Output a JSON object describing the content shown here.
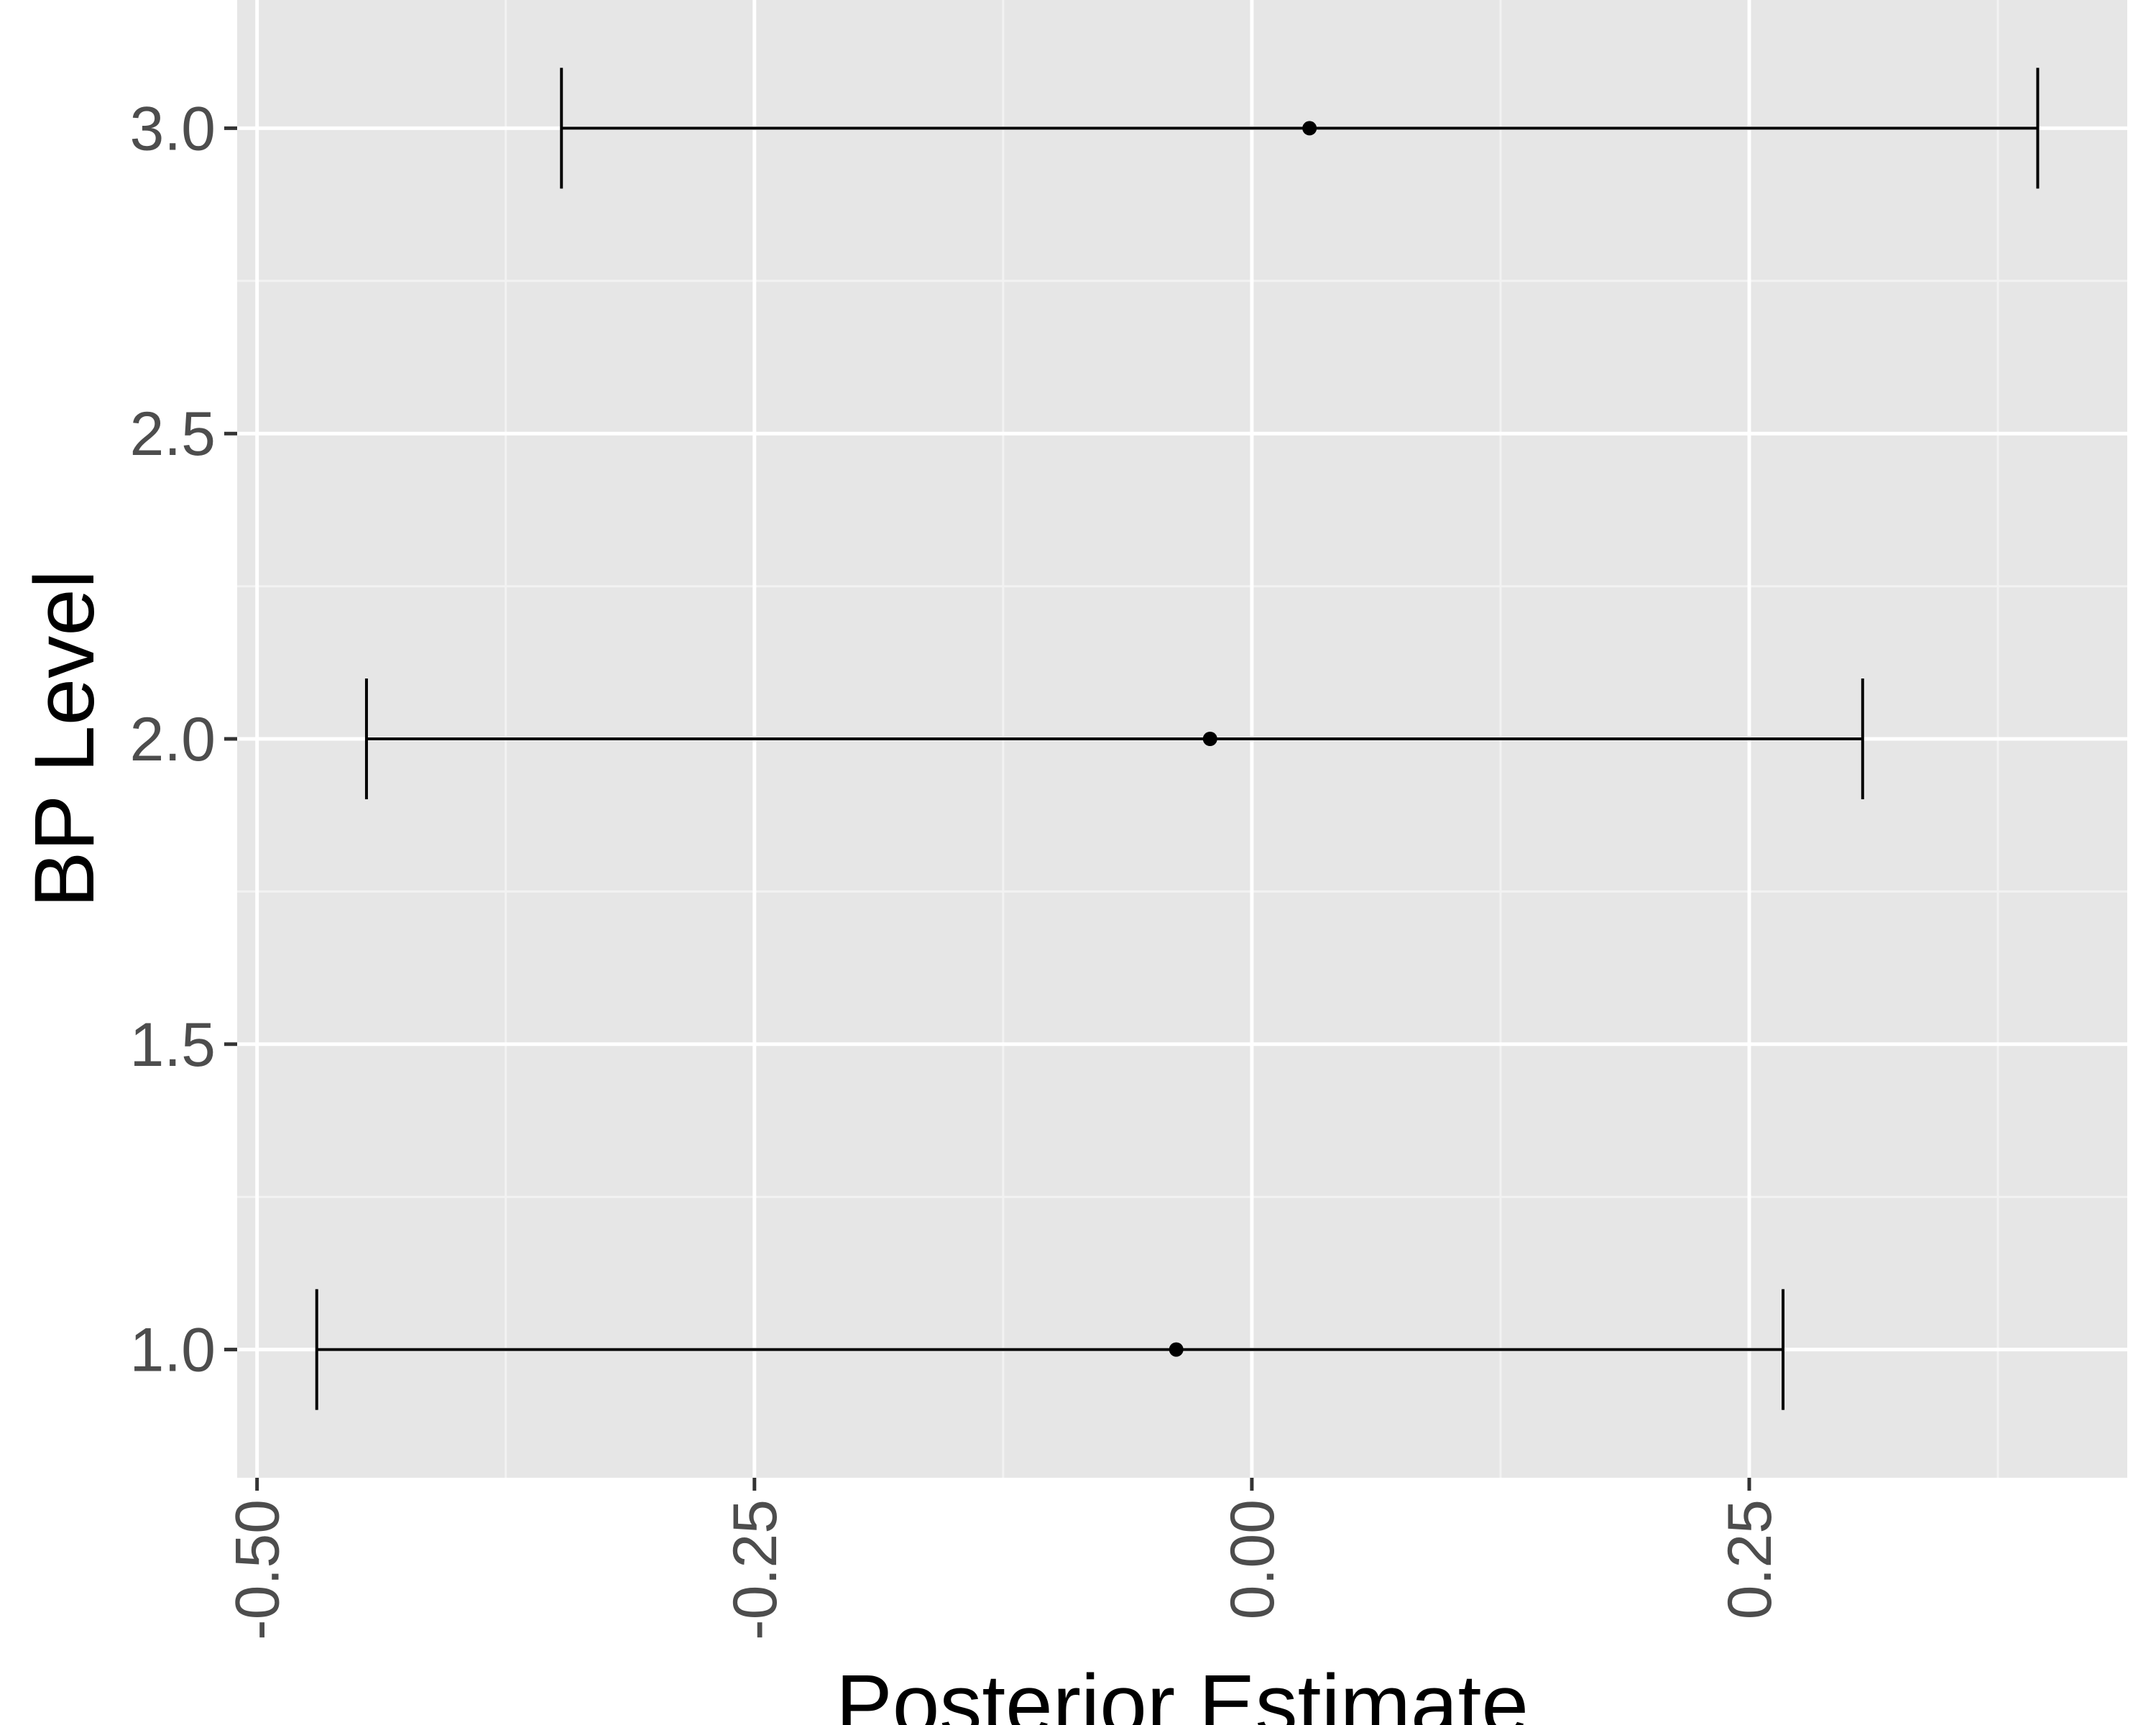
{
  "chart_data": {
    "type": "scatter",
    "xlabel": "Posterior Estimate",
    "ylabel": "BP Level",
    "xlim": [
      -0.51,
      0.44
    ],
    "ylim": [
      0.79,
      3.21
    ],
    "x_ticks": [
      -0.5,
      -0.25,
      0.0,
      0.25
    ],
    "x_tick_labels": [
      "-0.50",
      "-0.25",
      "0.00",
      "0.25"
    ],
    "y_ticks": [
      1.0,
      1.5,
      2.0,
      2.5,
      3.0
    ],
    "y_tick_labels": [
      "1.0",
      "1.5",
      "2.0",
      "2.5",
      "3.0"
    ],
    "grid": true,
    "series": [
      {
        "points": [
          {
            "y": 1.0,
            "estimate": -0.038,
            "lower": -0.47,
            "upper": 0.267
          },
          {
            "y": 2.0,
            "estimate": -0.021,
            "lower": -0.445,
            "upper": 0.307
          },
          {
            "y": 3.0,
            "estimate": 0.029,
            "lower": -0.347,
            "upper": 0.395
          }
        ]
      }
    ],
    "colors": {
      "panel": "#e6e6e6",
      "grid_major": "#ffffff",
      "grid_minor": "#f2f2f2",
      "marks": "#000000",
      "ticks": "#333333"
    }
  }
}
